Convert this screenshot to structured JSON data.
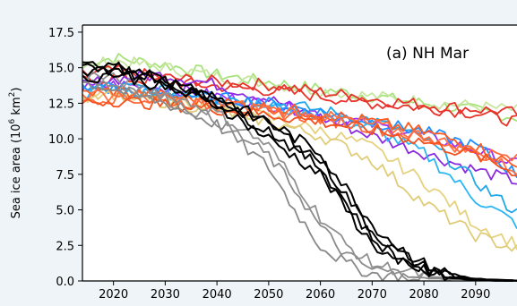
{
  "chart_data": {
    "type": "line",
    "annotation": "(a) NH Mar",
    "xlabel": "",
    "ylabel_main": "Sea ice area (10",
    "ylabel_exp1": "6",
    "ylabel_mid": " km",
    "ylabel_exp2": "2",
    "ylabel_end": ")",
    "xlim": [
      2014,
      2098
    ],
    "ylim": [
      0,
      18
    ],
    "xticks": [
      2020,
      2030,
      2040,
      2050,
      2060,
      2070,
      2080,
      2090
    ],
    "yticks": [
      0.0,
      2.5,
      5.0,
      7.5,
      10.0,
      12.5,
      15.0,
      17.5
    ],
    "grid": false,
    "legend": "none",
    "series": [
      {
        "color": "#a6e37a",
        "x": [
          2014,
          2020,
          2030,
          2040,
          2050,
          2060,
          2070,
          2080,
          2090,
          2098
        ],
        "y": [
          15.3,
          15.7,
          15.2,
          14.5,
          14.0,
          13.5,
          13.0,
          12.5,
          12.0,
          11.5
        ]
      },
      {
        "color": "#c8e5a0",
        "x": [
          2014,
          2020,
          2030,
          2040,
          2050,
          2060,
          2070,
          2080,
          2090,
          2098
        ],
        "y": [
          15.0,
          15.5,
          15.0,
          14.4,
          13.9,
          13.4,
          13.0,
          12.6,
          12.3,
          12.0
        ]
      },
      {
        "color": "#e8322a",
        "x": [
          2014,
          2020,
          2030,
          2040,
          2050,
          2060,
          2070,
          2080,
          2090,
          2098
        ],
        "y": [
          14.5,
          14.8,
          14.3,
          14.0,
          13.8,
          13.3,
          12.8,
          12.4,
          12.1,
          11.8
        ]
      },
      {
        "color": "#e8322a",
        "x": [
          2014,
          2020,
          2030,
          2040,
          2050,
          2060,
          2070,
          2080,
          2090,
          2098
        ],
        "y": [
          14.0,
          14.3,
          14.0,
          13.7,
          13.4,
          13.0,
          12.5,
          12.2,
          11.8,
          11.2
        ]
      },
      {
        "color": "#8a2be2",
        "x": [
          2014,
          2020,
          2030,
          2040,
          2050,
          2060,
          2070,
          2080,
          2090,
          2098
        ],
        "y": [
          13.8,
          14.2,
          14.5,
          13.8,
          12.8,
          11.5,
          10.2,
          9.0,
          7.8,
          7.0
        ]
      },
      {
        "color": "#9b30ff",
        "x": [
          2014,
          2020,
          2030,
          2040,
          2050,
          2060,
          2070,
          2080,
          2090,
          2098
        ],
        "y": [
          13.5,
          13.8,
          13.6,
          13.0,
          12.4,
          11.8,
          11.0,
          10.2,
          9.2,
          8.2
        ]
      },
      {
        "color": "#1ea8e8",
        "x": [
          2014,
          2020,
          2030,
          2040,
          2050,
          2060,
          2070,
          2080,
          2090,
          2098
        ],
        "y": [
          13.6,
          13.7,
          13.4,
          13.0,
          12.6,
          12.0,
          11.3,
          10.0,
          7.0,
          4.8
        ]
      },
      {
        "color": "#29b6f6",
        "x": [
          2014,
          2020,
          2030,
          2040,
          2050,
          2060,
          2070,
          2080,
          2090,
          2098
        ],
        "y": [
          13.2,
          13.4,
          13.1,
          12.8,
          12.3,
          11.6,
          10.7,
          9.0,
          5.8,
          4.0
        ]
      },
      {
        "color": "#1e90ff",
        "x": [
          2014,
          2020,
          2030,
          2040,
          2050,
          2060,
          2070,
          2080,
          2090,
          2098
        ],
        "y": [
          13.4,
          13.5,
          13.2,
          12.9,
          12.5,
          11.9,
          11.2,
          10.5,
          9.5,
          7.5
        ]
      },
      {
        "color": "#e6d27e",
        "x": [
          2014,
          2020,
          2030,
          2040,
          2050,
          2060,
          2070,
          2080,
          2090,
          2098
        ],
        "y": [
          13.0,
          13.2,
          12.8,
          12.2,
          11.5,
          10.6,
          9.4,
          7.0,
          4.0,
          2.6
        ]
      },
      {
        "color": "#e0cc78",
        "x": [
          2014,
          2020,
          2030,
          2040,
          2050,
          2060,
          2070,
          2080,
          2090,
          2098
        ],
        "y": [
          12.8,
          13.0,
          12.6,
          12.0,
          11.2,
          10.2,
          8.5,
          5.5,
          3.2,
          2.2
        ]
      },
      {
        "color": "#ff5a1f",
        "x": [
          2014,
          2020,
          2030,
          2040,
          2050,
          2060,
          2070,
          2080,
          2090,
          2098
        ],
        "y": [
          13.2,
          13.4,
          13.0,
          12.6,
          12.2,
          11.8,
          11.2,
          10.5,
          9.5,
          8.0
        ]
      },
      {
        "color": "#ff7043",
        "x": [
          2014,
          2020,
          2030,
          2040,
          2050,
          2060,
          2070,
          2080,
          2090,
          2098
        ],
        "y": [
          13.0,
          13.1,
          12.8,
          12.5,
          12.1,
          11.6,
          11.0,
          10.2,
          9.0,
          7.8
        ]
      },
      {
        "color": "#ff6a3d",
        "x": [
          2014,
          2020,
          2030,
          2040,
          2050,
          2060,
          2070,
          2080,
          2090,
          2098
        ],
        "y": [
          12.8,
          12.9,
          12.6,
          12.3,
          11.9,
          11.4,
          10.8,
          10.0,
          9.2,
          8.5
        ]
      },
      {
        "color": "#f4511e",
        "x": [
          2014,
          2020,
          2030,
          2040,
          2050,
          2060,
          2070,
          2080,
          2090,
          2098
        ],
        "y": [
          12.6,
          12.7,
          12.4,
          12.1,
          11.7,
          11.2,
          10.6,
          9.8,
          8.8,
          7.6
        ]
      },
      {
        "color": "#888888",
        "x": [
          2014,
          2020,
          2030,
          2040,
          2050,
          2055,
          2060,
          2065,
          2070,
          2080,
          2090,
          2098
        ],
        "y": [
          14.0,
          13.5,
          12.5,
          11.0,
          8.0,
          5.0,
          2.5,
          1.2,
          0.5,
          0.2,
          0.05,
          0.0
        ]
      },
      {
        "color": "#8c8c8c",
        "x": [
          2014,
          2020,
          2030,
          2040,
          2050,
          2055,
          2060,
          2065,
          2070,
          2080,
          2090,
          2098
        ],
        "y": [
          14.3,
          13.8,
          12.8,
          11.3,
          8.8,
          6.5,
          3.8,
          1.8,
          0.8,
          0.3,
          0.1,
          0.0
        ]
      },
      {
        "color": "#909090",
        "x": [
          2014,
          2020,
          2030,
          2040,
          2050,
          2055,
          2060,
          2065,
          2070,
          2080,
          2090,
          2098
        ],
        "y": [
          14.6,
          14.2,
          13.2,
          11.8,
          9.5,
          7.0,
          4.5,
          2.5,
          1.2,
          0.4,
          0.1,
          0.0
        ]
      },
      {
        "color": "#000000",
        "x": [
          2014,
          2020,
          2030,
          2040,
          2050,
          2060,
          2065,
          2070,
          2075,
          2080,
          2085,
          2090,
          2098
        ],
        "y": [
          15.0,
          15.5,
          14.0,
          12.8,
          11.0,
          8.5,
          6.0,
          3.5,
          2.0,
          1.0,
          0.4,
          0.1,
          0.0
        ]
      },
      {
        "color": "#000000",
        "x": [
          2014,
          2020,
          2030,
          2040,
          2050,
          2060,
          2065,
          2070,
          2075,
          2080,
          2085,
          2090,
          2098
        ],
        "y": [
          14.8,
          15.2,
          14.2,
          12.9,
          11.2,
          9.0,
          6.5,
          4.0,
          2.4,
          1.2,
          0.5,
          0.15,
          0.0
        ]
      },
      {
        "color": "#000000",
        "x": [
          2014,
          2020,
          2030,
          2040,
          2050,
          2060,
          2065,
          2070,
          2075,
          2080,
          2085,
          2090,
          2098
        ],
        "y": [
          14.5,
          15.0,
          13.9,
          12.6,
          10.6,
          8.0,
          5.5,
          3.0,
          1.6,
          0.7,
          0.3,
          0.1,
          0.0
        ]
      },
      {
        "color": "#000000",
        "x": [
          2014,
          2020,
          2030,
          2040,
          2050,
          2060,
          2065,
          2070,
          2075,
          2080,
          2085,
          2090,
          2098
        ],
        "y": [
          14.2,
          14.6,
          13.6,
          12.4,
          10.0,
          7.5,
          5.0,
          2.6,
          1.3,
          0.6,
          0.2,
          0.05,
          0.0
        ]
      }
    ]
  }
}
